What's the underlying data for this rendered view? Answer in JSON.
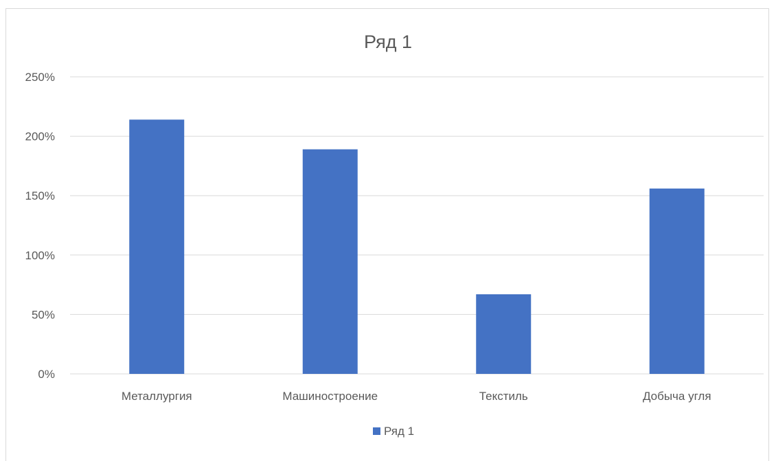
{
  "chart_data": {
    "type": "bar",
    "title": "Ряд 1",
    "categories": [
      "Металлургия",
      "Машиностроение",
      "Текстиль",
      "Добыча угля"
    ],
    "series": [
      {
        "name": "Ряд 1",
        "values": [
          2.14,
          1.89,
          0.67,
          1.56
        ],
        "color": "#4472c4"
      }
    ],
    "ylim": [
      0,
      2.5
    ],
    "yticks": [
      {
        "value": 0,
        "label": "0%"
      },
      {
        "value": 0.5,
        "label": "50%"
      },
      {
        "value": 1.0,
        "label": "100%"
      },
      {
        "value": 1.5,
        "label": "150%"
      },
      {
        "value": 2.0,
        "label": "200%"
      },
      {
        "value": 2.5,
        "label": "250%"
      }
    ],
    "xlabel": "",
    "ylabel": "",
    "grid": true,
    "gridColor": "#d9d9d9",
    "legend": {
      "position": "bottom"
    }
  }
}
